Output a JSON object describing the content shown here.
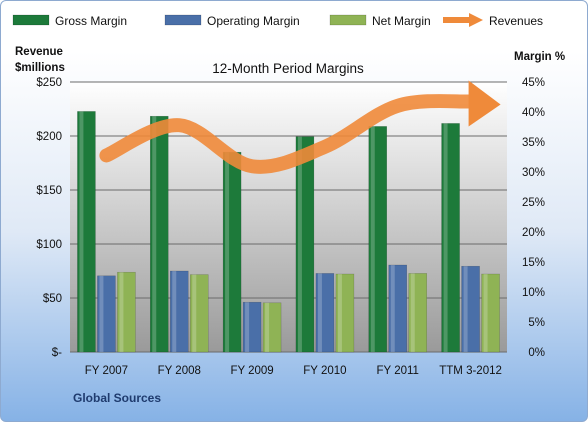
{
  "chart_data": {
    "type": "bar",
    "title": "12-Month Period Margins",
    "categories": [
      "FY 2007",
      "FY 2008",
      "FY 2009",
      "FY 2010",
      "FY 2011",
      "TTM 3-2012"
    ],
    "y_left_label_line1": "Revenue",
    "y_left_label_line2": "$millions",
    "y_right_label": "Margin %",
    "ylim_left": [
      0,
      250
    ],
    "ylim_right": [
      0,
      45
    ],
    "y_left_ticks": [
      "$-",
      "$50",
      "$100",
      "$150",
      "$200",
      "$250"
    ],
    "y_right_ticks": [
      "0%",
      "5%",
      "10%",
      "15%",
      "20%",
      "25%",
      "30%",
      "35%",
      "40%",
      "45%"
    ],
    "series": [
      {
        "name": "Gross Margin",
        "axis": "right",
        "color": "#1d7a3a",
        "values": [
          40.1,
          39.3,
          33.3,
          35.9,
          37.6,
          38.1
        ]
      },
      {
        "name": "Operating Margin",
        "axis": "right",
        "color": "#4a6fa8",
        "values": [
          12.7,
          13.5,
          8.3,
          13.1,
          14.5,
          14.3
        ]
      },
      {
        "name": "Net Margin",
        "axis": "right",
        "color": "#8fb355",
        "values": [
          13.3,
          12.9,
          8.2,
          13.0,
          13.1,
          13.0
        ]
      }
    ],
    "revenues": {
      "name": "Revenues",
      "axis": "left",
      "color": "#ef8a3a",
      "values": [
        182,
        210,
        172,
        190,
        228,
        232
      ]
    },
    "grid": true,
    "legend_position": "top",
    "source": "Global Sources"
  }
}
